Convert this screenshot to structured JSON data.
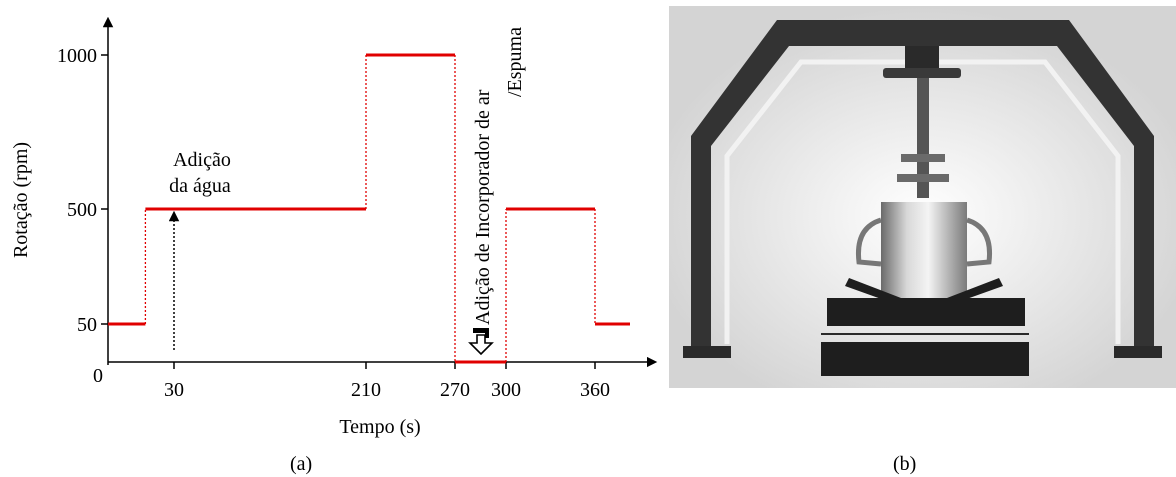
{
  "chart_data": {
    "type": "line",
    "style": "step",
    "x": [
      0,
      17,
      17,
      30,
      210,
      210,
      270,
      270,
      300,
      300,
      360,
      360,
      380
    ],
    "y": [
      50,
      50,
      500,
      500,
      500,
      1000,
      1000,
      0,
      0,
      500,
      500,
      50,
      50
    ],
    "xticks": [
      30,
      210,
      270,
      300,
      360
    ],
    "yticks": [
      50,
      500,
      1000
    ],
    "origin_label": "0",
    "xlabel": "Tempo (s)",
    "ylabel": "Rotação (rpm)",
    "series_color": "#e00000",
    "transition_color": "#e00000",
    "annotations": {
      "water_line1": "Adição",
      "water_line2": "da água",
      "air_line1": "Adição de Incorporador de ar",
      "air_line2": "/Espuma"
    },
    "caption": "(a)"
  },
  "photo": {
    "caption": "(b)",
    "subject": "mixer-apparatus",
    "colors": {
      "frame": "#3a3a3a",
      "background": "#e8e8e8",
      "base": "#1e1e1e",
      "bowl": "#a8a8a8"
    }
  }
}
